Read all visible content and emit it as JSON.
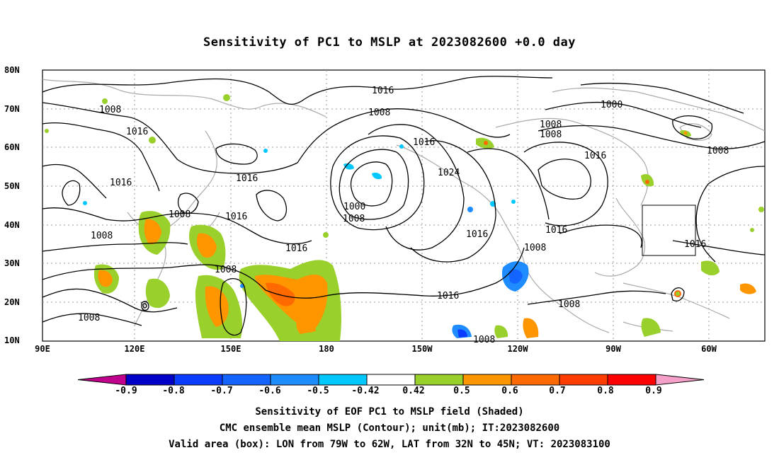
{
  "title": "Sensitivity of PC1 to MSLP at 2023082600 +0.0 day",
  "lat_labels": [
    "80N",
    "70N",
    "60N",
    "50N",
    "40N",
    "30N",
    "20N",
    "10N"
  ],
  "lon_labels": [
    "90E",
    "120E",
    "150E",
    "180",
    "150W",
    "120W",
    "90W",
    "60W"
  ],
  "contour_labels": [
    "1016",
    "1008",
    "1016",
    "1016",
    "1016",
    "1008",
    "1008",
    "1016",
    "1008",
    "1016",
    "1008",
    "1000",
    "1008",
    "1016",
    "1024",
    "1016",
    "1016",
    "1016",
    "1008",
    "1000",
    "1008",
    "1008",
    "1016",
    "1008",
    "1016",
    "1008",
    "1008",
    "1008"
  ],
  "colorbar": {
    "labels": [
      "-0.9",
      "-0.8",
      "-0.7",
      "-0.6",
      "-0.5",
      "-0.42",
      "0.42",
      "0.5",
      "0.6",
      "0.7",
      "0.8",
      "0.9"
    ],
    "colors": [
      "#c0008c",
      "#0000c8",
      "#0a3cff",
      "#1464ff",
      "#1e8cff",
      "#00c8ff",
      "#ffffff",
      "#9ad02c",
      "#ff9600",
      "#ff6a00",
      "#ff3c00",
      "#ff0000",
      "#f5a0c8"
    ]
  },
  "valid_box_label": "Valid area (box): LON from 79W to 62W, LAT from 32N to 45N; VT: 2023083100",
  "caption": {
    "line1": "Sensitivity of EOF PC1 to MSLP field (Shaded)",
    "line2": "CMC ensemble mean MSLP (Contour); unit(mb); IT:2023082600",
    "line3": "Valid area (box): LON from 79W to 62W, LAT from 32N to 45N; VT: 2023083100"
  }
}
